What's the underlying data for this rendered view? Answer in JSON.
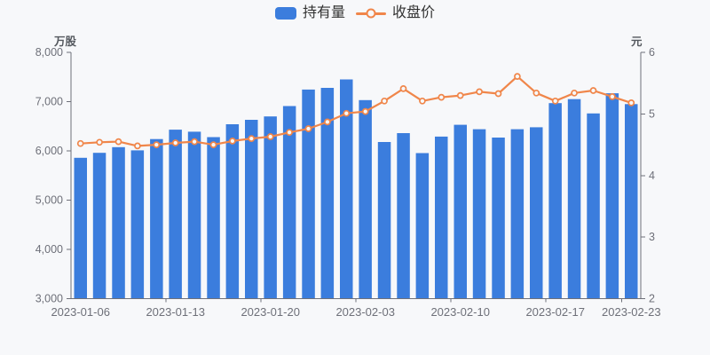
{
  "legend": {
    "items": [
      {
        "label": "持有量",
        "marker": "bar-swatch",
        "color": "#3B7DDD"
      },
      {
        "label": "收盘价",
        "marker": "line-hollow-circle",
        "color": "#F0864A"
      }
    ]
  },
  "axes": {
    "left_unit": "万股",
    "right_unit": "元"
  },
  "chart_data": {
    "type": "combo",
    "legend_position": "top-center",
    "grid": false,
    "colors": {
      "background": "#F7F8FA",
      "axis_line": "#6E7079",
      "tick_text": "#6E7079"
    },
    "series": [
      {
        "name": "持有量",
        "type": "bar",
        "y_axis": "left",
        "unit": "万股",
        "color": "#3B7DDD",
        "values": [
          5860,
          5960,
          6075,
          6010,
          6240,
          6430,
          6390,
          6280,
          6540,
          6630,
          6700,
          6910,
          7245,
          7280,
          7450,
          7030,
          6180,
          6360,
          5955,
          6290,
          6530,
          6440,
          6270,
          6440,
          6480,
          6970,
          7050,
          6760,
          7170,
          6950
        ]
      },
      {
        "name": "收盘价",
        "type": "line",
        "y_axis": "right",
        "unit": "元",
        "color": "#F0864A",
        "marker": "hollow-circle",
        "values": [
          4.52,
          4.54,
          4.55,
          4.48,
          4.5,
          4.53,
          4.55,
          4.5,
          4.56,
          4.6,
          4.63,
          4.7,
          4.76,
          4.87,
          5.01,
          5.04,
          5.21,
          5.41,
          5.21,
          5.27,
          5.3,
          5.36,
          5.33,
          5.61,
          5.34,
          5.21,
          5.34,
          5.38,
          5.28,
          5.18
        ]
      }
    ],
    "left_axis": {
      "min": 3000,
      "max": 8000,
      "ticks": [
        {
          "value": 3000,
          "label": "3,000"
        },
        {
          "value": 4000,
          "label": "4,000"
        },
        {
          "value": 5000,
          "label": "5,000"
        },
        {
          "value": 6000,
          "label": "6,000"
        },
        {
          "value": 7000,
          "label": "7,000"
        },
        {
          "value": 8000,
          "label": "8,000"
        }
      ]
    },
    "right_axis": {
      "min": 2,
      "max": 6,
      "ticks": [
        {
          "value": 2,
          "label": "2"
        },
        {
          "value": 3,
          "label": "3"
        },
        {
          "value": 4,
          "label": "4"
        },
        {
          "value": 5,
          "label": "5"
        },
        {
          "value": 6,
          "label": "6"
        }
      ]
    },
    "x_axis": {
      "labels": [
        {
          "index": 0,
          "label": "2023-01-06"
        },
        {
          "index": 5,
          "label": "2023-01-13"
        },
        {
          "index": 10,
          "label": "2023-01-20"
        },
        {
          "index": 15,
          "label": "2023-02-03"
        },
        {
          "index": 20,
          "label": "2023-02-10"
        },
        {
          "index": 25,
          "label": "2023-02-17"
        },
        {
          "index": 29,
          "label": "2023-02-23"
        }
      ]
    }
  }
}
